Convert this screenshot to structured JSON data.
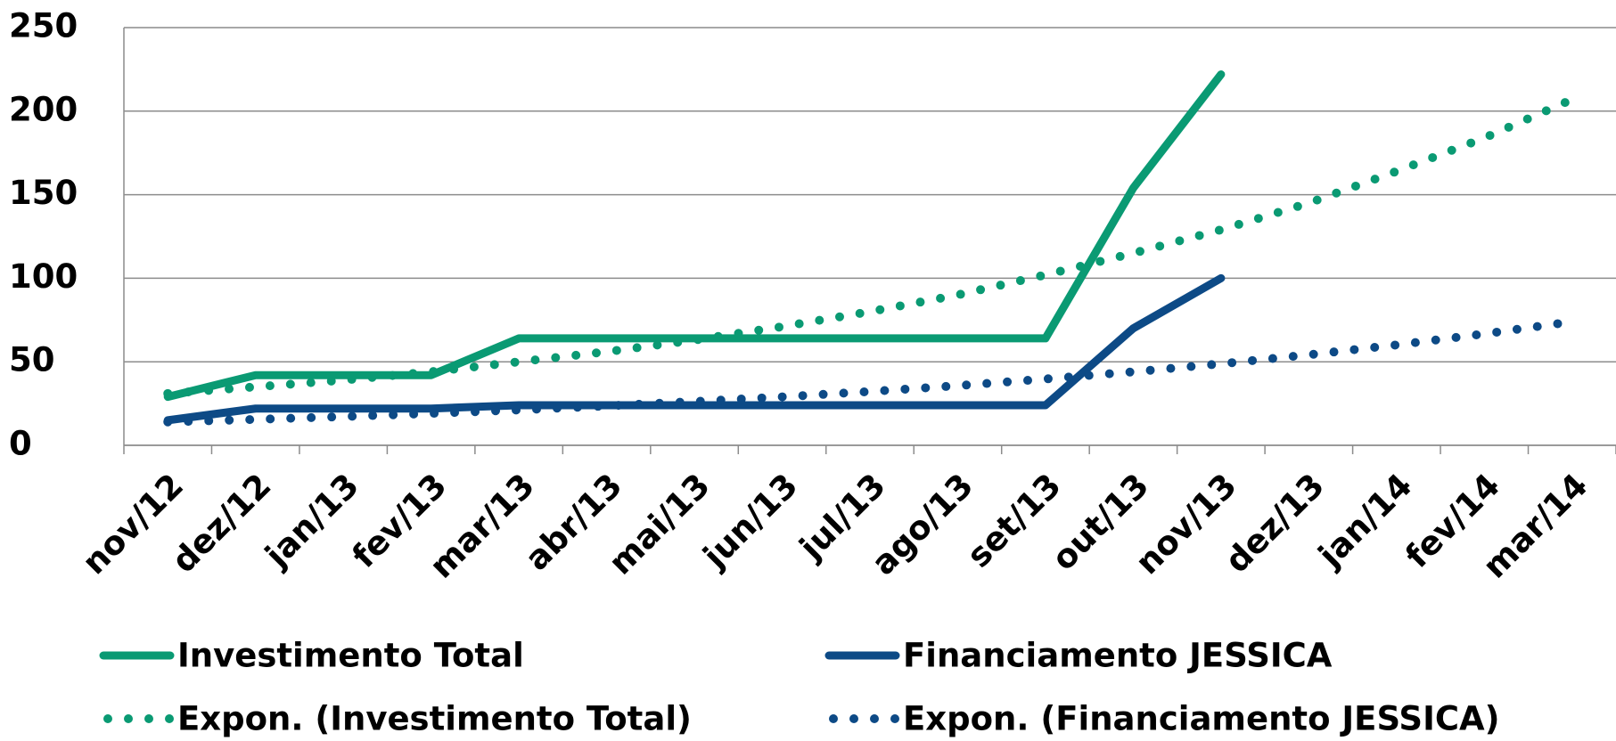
{
  "chart_data": {
    "type": "line",
    "categories": [
      "nov/12",
      "dez/12",
      "jan/13",
      "fev/13",
      "mar/13",
      "abr/13",
      "mai/13",
      "jun/13",
      "jul/13",
      "ago/13",
      "set/13",
      "out/13",
      "nov/13",
      "dez/13",
      "jan/14",
      "fev/14",
      "mar/14"
    ],
    "series": [
      {
        "name": "Investimento Total",
        "color": "#0a9a73",
        "line_style": "solid",
        "values": [
          29,
          42,
          42,
          42,
          64,
          64,
          64,
          64,
          64,
          64,
          64,
          154,
          222,
          null,
          null,
          null,
          null
        ]
      },
      {
        "name": "Financiamento JESSICA",
        "color": "#0d4a86",
        "line_style": "solid",
        "values": [
          15,
          22,
          22,
          22,
          24,
          24,
          24,
          24,
          24,
          24,
          24,
          70,
          100,
          null,
          null,
          null,
          null
        ]
      },
      {
        "name": "Expon. (Investimento Total)",
        "color": "#0a9a73",
        "line_style": "dotted",
        "values": [
          31,
          35,
          39,
          44,
          50,
          56,
          63,
          71,
          80,
          90,
          102,
          115,
          129,
          145,
          164,
          184,
          207
        ]
      },
      {
        "name": "Expon. (Financiamento JESSICA)",
        "color": "#0d4a86",
        "line_style": "dotted",
        "values": [
          14,
          15.5,
          17.2,
          19.1,
          21.2,
          23.6,
          26.2,
          29,
          32.2,
          35.7,
          39.7,
          44,
          48.8,
          54.2,
          60.1,
          66.7,
          74
        ]
      }
    ],
    "ylim": [
      0,
      250
    ],
    "yticks": [
      0,
      50,
      100,
      150,
      200,
      250
    ],
    "grid": true
  }
}
